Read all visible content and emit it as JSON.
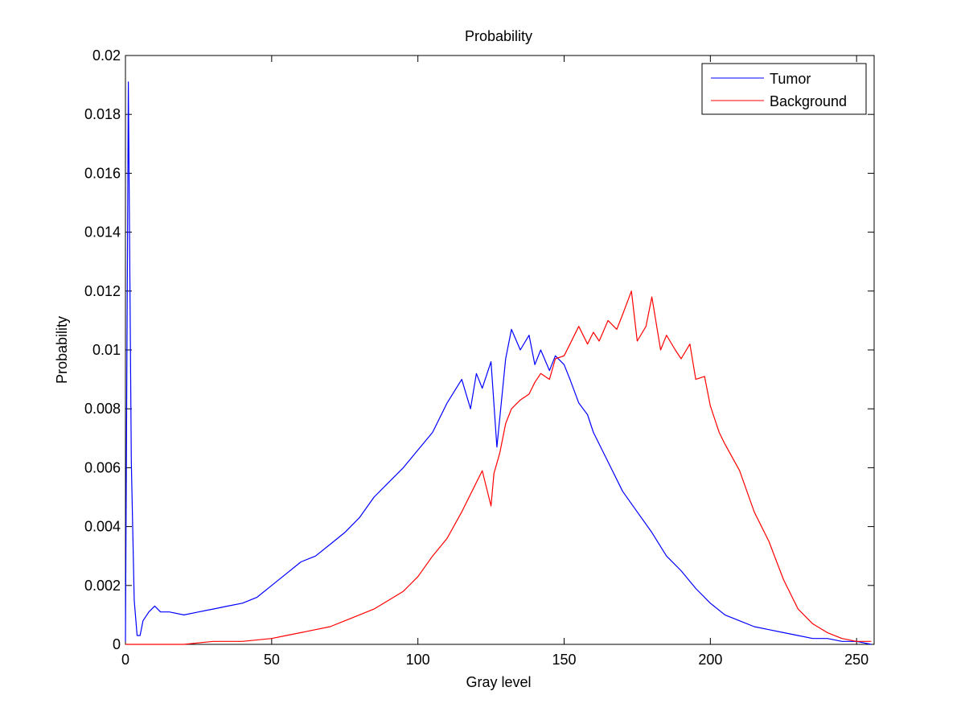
{
  "chart_data": {
    "type": "line",
    "title": "Probability",
    "xlabel": "Gray level",
    "ylabel": "Probability",
    "xlim": [
      0,
      256
    ],
    "ylim": [
      0,
      0.02
    ],
    "xticks": [
      0,
      50,
      100,
      150,
      200,
      250
    ],
    "yticks": [
      0,
      0.002,
      0.004,
      0.006,
      0.008,
      0.01,
      0.012,
      0.014,
      0.016,
      0.018,
      0.02
    ],
    "ytick_labels": [
      "0",
      "0.002",
      "0.004",
      "0.006",
      "0.008",
      "0.01",
      "0.012",
      "0.014",
      "0.016",
      "0.018",
      "0.02"
    ],
    "grid": false,
    "legend_position": "top-right",
    "series": [
      {
        "name": "Tumor",
        "color": "#0000ff",
        "x": [
          0,
          1,
          2,
          3,
          4,
          5,
          6,
          8,
          10,
          12,
          15,
          20,
          25,
          30,
          35,
          40,
          45,
          50,
          55,
          60,
          65,
          70,
          75,
          80,
          85,
          90,
          95,
          100,
          105,
          110,
          115,
          118,
          120,
          122,
          125,
          127,
          130,
          132,
          135,
          138,
          140,
          142,
          145,
          147,
          150,
          152,
          155,
          158,
          160,
          165,
          170,
          175,
          180,
          185,
          190,
          195,
          200,
          205,
          210,
          215,
          220,
          225,
          230,
          235,
          240,
          245,
          250,
          255
        ],
        "y": [
          0.0001,
          0.0191,
          0.0062,
          0.0015,
          0.0003,
          0.0003,
          0.0008,
          0.0011,
          0.0013,
          0.0011,
          0.0011,
          0.001,
          0.0011,
          0.0012,
          0.0013,
          0.0014,
          0.0016,
          0.002,
          0.0024,
          0.0028,
          0.003,
          0.0034,
          0.0038,
          0.0043,
          0.005,
          0.0055,
          0.006,
          0.0066,
          0.0072,
          0.0082,
          0.009,
          0.008,
          0.0092,
          0.0087,
          0.0096,
          0.0067,
          0.0097,
          0.0107,
          0.01,
          0.0105,
          0.0095,
          0.01,
          0.0093,
          0.0098,
          0.0095,
          0.009,
          0.0082,
          0.0078,
          0.0072,
          0.0062,
          0.0052,
          0.0045,
          0.0038,
          0.003,
          0.0025,
          0.0019,
          0.0014,
          0.001,
          0.0008,
          0.0006,
          0.0005,
          0.0004,
          0.0003,
          0.0002,
          0.0002,
          0.0001,
          0.0001,
          0.0
        ]
      },
      {
        "name": "Background",
        "color": "#ff0000",
        "x": [
          0,
          10,
          20,
          30,
          40,
          50,
          55,
          60,
          65,
          70,
          75,
          80,
          85,
          90,
          95,
          100,
          105,
          110,
          115,
          120,
          122,
          125,
          126,
          128,
          130,
          132,
          135,
          138,
          140,
          142,
          145,
          147,
          150,
          152,
          155,
          158,
          160,
          162,
          165,
          168,
          170,
          173,
          175,
          178,
          180,
          183,
          185,
          188,
          190,
          193,
          195,
          198,
          200,
          203,
          205,
          210,
          215,
          220,
          225,
          230,
          235,
          240,
          245,
          250,
          255
        ],
        "y": [
          0.0,
          0.0,
          0.0,
          0.0001,
          0.0001,
          0.0002,
          0.0003,
          0.0004,
          0.0005,
          0.0006,
          0.0008,
          0.001,
          0.0012,
          0.0015,
          0.0018,
          0.0023,
          0.003,
          0.0036,
          0.0045,
          0.0055,
          0.0059,
          0.0047,
          0.0058,
          0.0065,
          0.0075,
          0.008,
          0.0083,
          0.0085,
          0.0089,
          0.0092,
          0.009,
          0.0097,
          0.0098,
          0.0102,
          0.0108,
          0.0102,
          0.0106,
          0.0103,
          0.011,
          0.0107,
          0.0112,
          0.012,
          0.0103,
          0.0108,
          0.0118,
          0.01,
          0.0105,
          0.01,
          0.0097,
          0.0102,
          0.009,
          0.0091,
          0.0081,
          0.0072,
          0.0068,
          0.0059,
          0.0045,
          0.0035,
          0.0022,
          0.0012,
          0.0007,
          0.0004,
          0.0002,
          0.0001,
          0.0001
        ]
      }
    ]
  }
}
